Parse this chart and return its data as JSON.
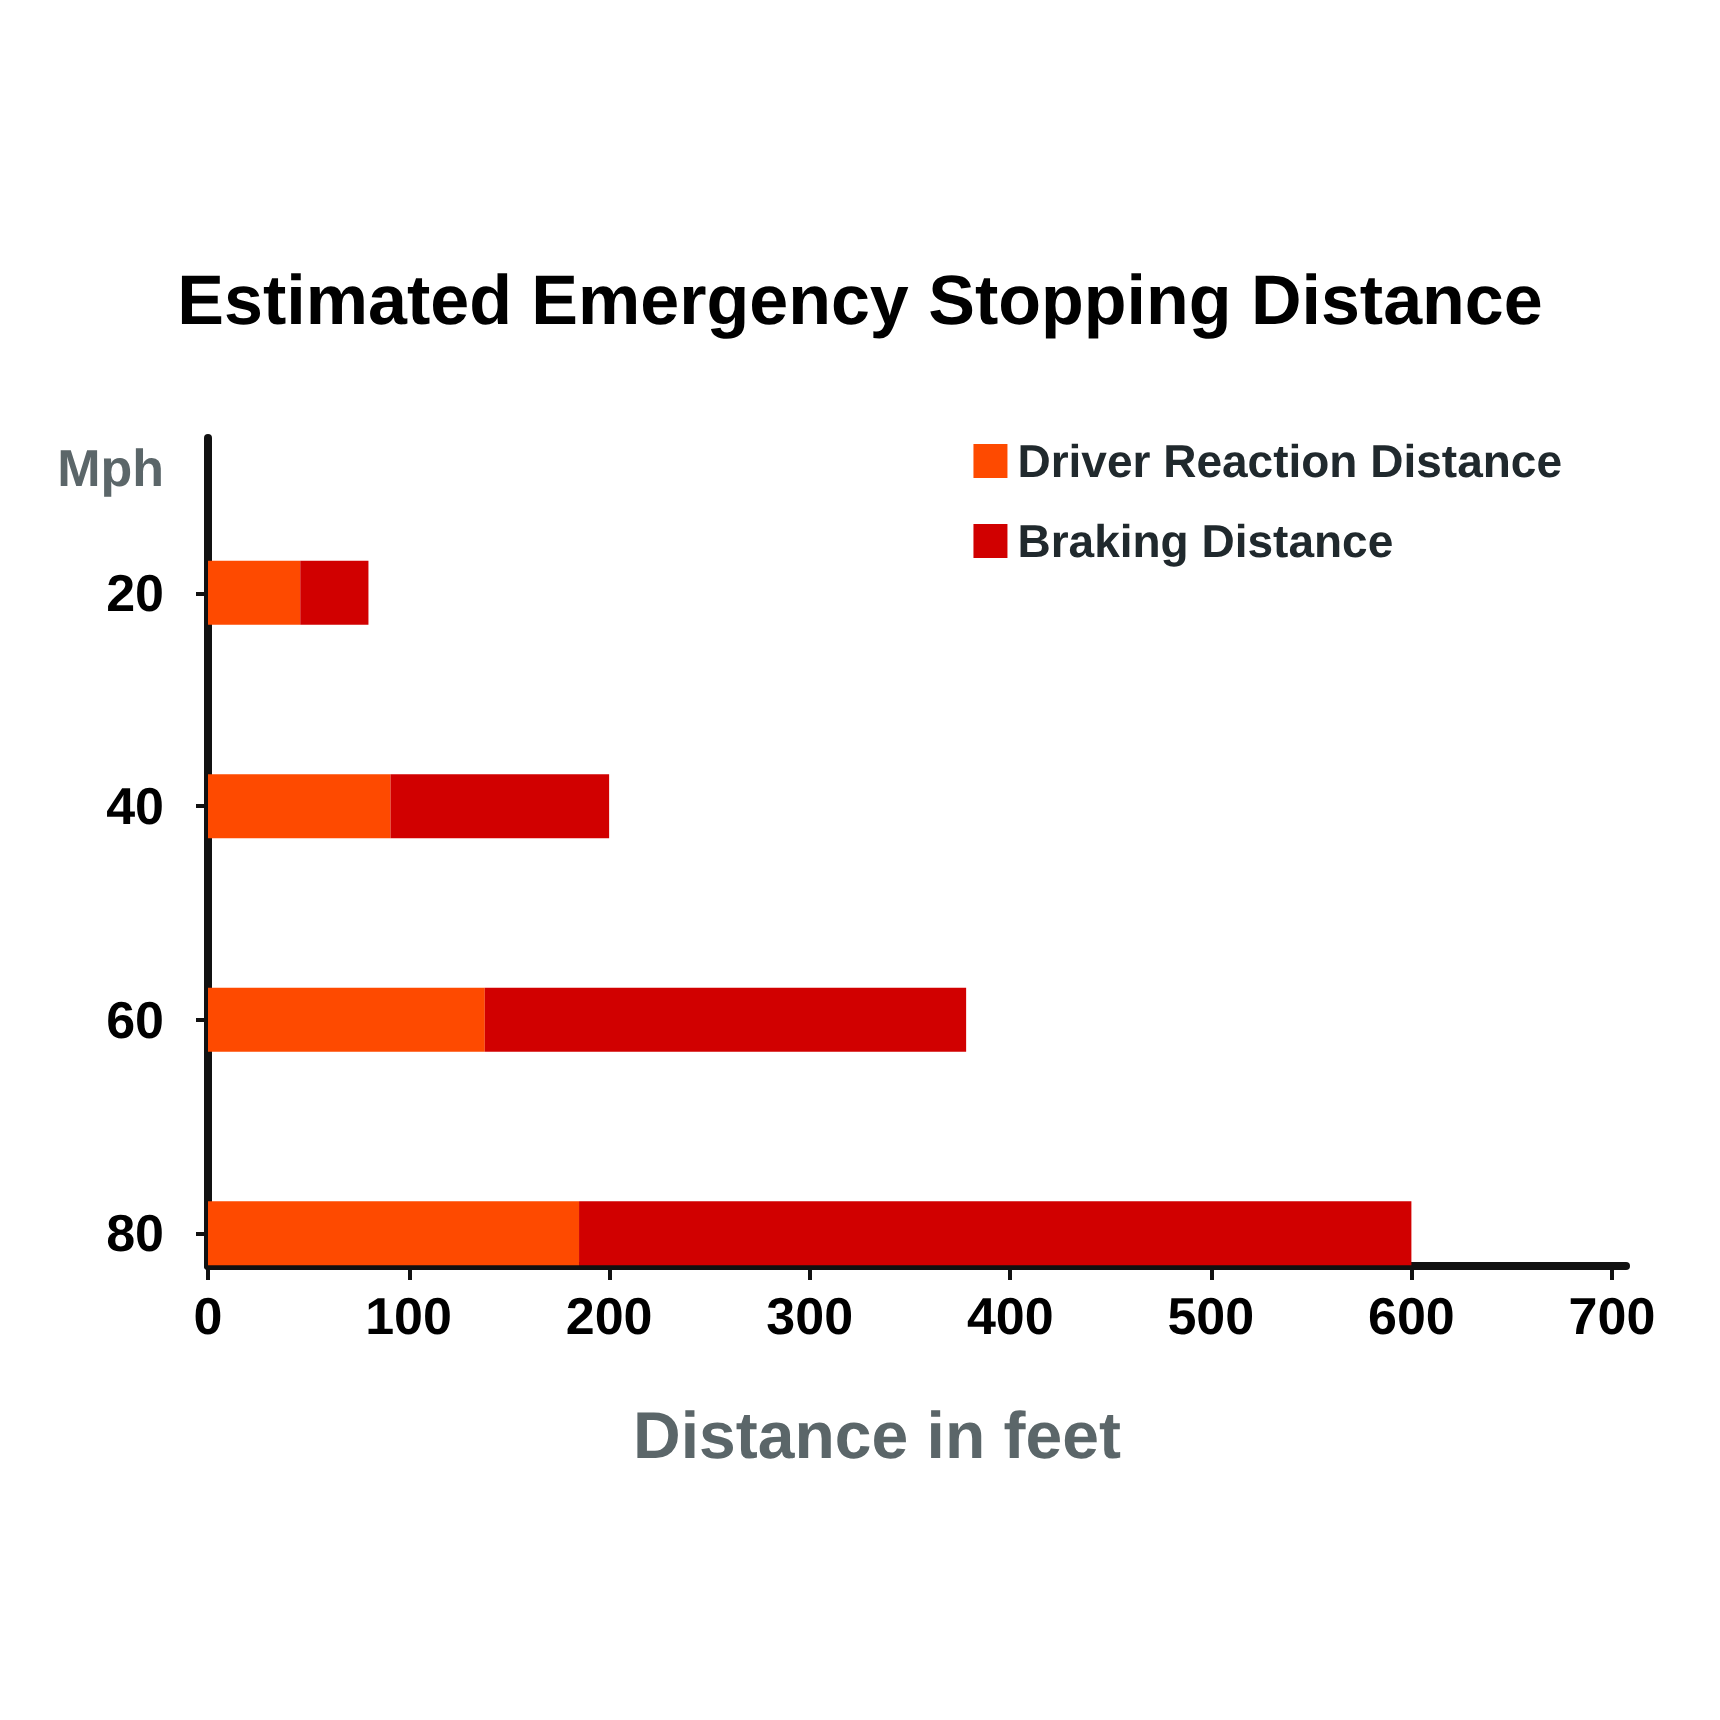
{
  "chart_data": {
    "type": "bar",
    "title": "Estimated Emergency Stopping Distance",
    "xlabel": "Distance in feet",
    "ylabel": "Mph",
    "categories": [
      "20",
      "40",
      "60",
      "80"
    ],
    "orientation": "horizontal",
    "stacked": true,
    "series": [
      {
        "name": "Driver Reaction Distance",
        "color": "#fe4a00",
        "values": [
          46,
          91,
          138,
          185
        ]
      },
      {
        "name": "Braking Distance",
        "color": "#d10000",
        "values": [
          34,
          109,
          240,
          415
        ]
      }
    ],
    "xlim": [
      0,
      707
    ],
    "xticks": [
      0,
      100,
      200,
      300,
      400,
      500,
      600,
      700
    ],
    "grid": false,
    "legend": "top right"
  }
}
